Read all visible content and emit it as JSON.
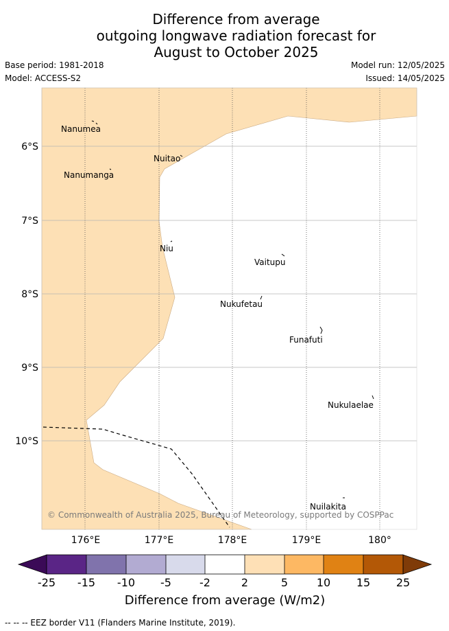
{
  "title": {
    "line1": "Difference from average",
    "line2": "outgoing longwave radiation forecast for",
    "line3": "August to October 2025"
  },
  "meta": {
    "base_period": "Base period: 1981-2018",
    "model": "Model: ACCESS-S2",
    "model_run": "Model run: 12/05/2025",
    "issued": "Issued: 14/05/2025"
  },
  "map": {
    "lat_labels": [
      "6°S",
      "7°S",
      "8°S",
      "9°S",
      "10°S"
    ],
    "lon_labels": [
      "176°E",
      "177°E",
      "178°E",
      "179°E",
      "180°"
    ],
    "islands": [
      "Nanumea",
      "Nuitao",
      "Nanumanga",
      "Niu",
      "Vaitupu",
      "Nukufetau",
      "Funafuti",
      "Nukulaelae",
      "Nuilakita"
    ],
    "fill_color": "#fde0b5",
    "border_color": "#c9a982",
    "copyright": "© Commonwealth of Australia 2025, Bureau of Meteorology, supported by COSPPac"
  },
  "colorbar": {
    "ticks": [
      "-25",
      "-15",
      "-10",
      "-5",
      "-2",
      "2",
      "5",
      "10",
      "15",
      "25"
    ],
    "colors": [
      "#3b0a57",
      "#5a2586",
      "#8073ac",
      "#b2abd2",
      "#d8daeb",
      "#ffffff",
      "#fee0b6",
      "#fdb863",
      "#e08214",
      "#b35806",
      "#7f3b08"
    ],
    "label": "Difference from average (W/m2)"
  },
  "footer": "-- -- -- EEZ border V11 (Flanders Marine Institute, 2019)."
}
